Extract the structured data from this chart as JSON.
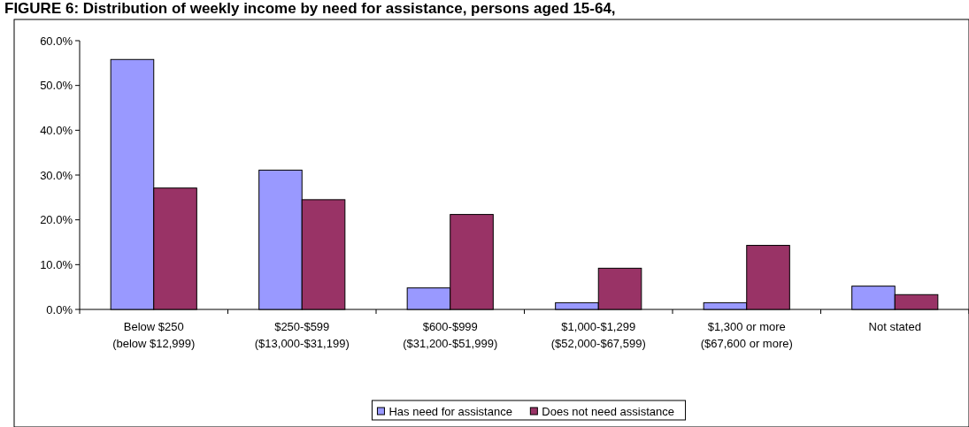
{
  "chart_data": {
    "type": "bar",
    "title": "FIGURE 6: Distribution of weekly income by need for assistance, persons aged 15-64,",
    "categories": [
      "Below $250\n(below $12,999)",
      "$250-$599\n($13,000-$31,199)",
      "$600-$999\n($31,200-$51,999)",
      "$1,000-$1,299\n($52,000-$67,599)",
      "$1,300 or more\n($67,600 or more)",
      "Not stated"
    ],
    "series": [
      {
        "name": "Has need for assistance",
        "color": "#9999ff",
        "values": [
          55.8,
          31.1,
          4.8,
          1.5,
          1.5,
          5.2
        ]
      },
      {
        "name": "Does not need assistance",
        "color": "#993366",
        "values": [
          27.1,
          24.5,
          21.2,
          9.2,
          14.3,
          3.3
        ]
      }
    ],
    "ylim": [
      0,
      60
    ],
    "yticks": [
      {
        "value": 0,
        "label": "0.0%"
      },
      {
        "value": 10,
        "label": "10.0%"
      },
      {
        "value": 20,
        "label": "20.0%"
      },
      {
        "value": 30,
        "label": "30.0%"
      },
      {
        "value": 40,
        "label": "40.0%"
      },
      {
        "value": 50,
        "label": "50.0%"
      },
      {
        "value": 60,
        "label": "60.0%"
      }
    ],
    "legend": "bottom"
  }
}
